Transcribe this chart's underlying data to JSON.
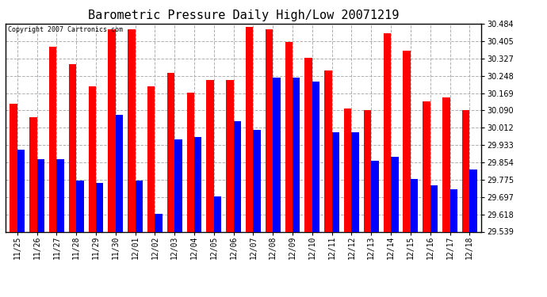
{
  "title": "Barometric Pressure Daily High/Low 20071219",
  "copyright": "Copyright 2007 Cartronics.com",
  "categories": [
    "11/25",
    "11/26",
    "11/27",
    "11/28",
    "11/29",
    "11/30",
    "12/01",
    "12/02",
    "12/03",
    "12/04",
    "12/05",
    "12/06",
    "12/07",
    "12/08",
    "12/09",
    "12/10",
    "12/11",
    "12/12",
    "12/13",
    "12/14",
    "12/15",
    "12/16",
    "12/17",
    "12/18"
  ],
  "highs": [
    30.12,
    30.06,
    30.38,
    30.3,
    30.2,
    30.46,
    30.46,
    30.2,
    30.26,
    30.17,
    30.23,
    30.23,
    30.47,
    30.46,
    30.4,
    30.33,
    30.27,
    30.1,
    30.09,
    30.44,
    30.36,
    30.13,
    30.15,
    30.09
  ],
  "lows": [
    29.91,
    29.87,
    29.87,
    29.77,
    29.76,
    30.07,
    29.77,
    29.62,
    29.96,
    29.97,
    29.7,
    30.04,
    30.0,
    30.24,
    30.24,
    30.22,
    29.99,
    29.99,
    29.86,
    29.88,
    29.78,
    29.75,
    29.73,
    29.82
  ],
  "high_color": "#ff0000",
  "low_color": "#0000ff",
  "bg_color": "#ffffff",
  "grid_color": "#b0b0b0",
  "ylim_min": 29.539,
  "ylim_max": 30.484,
  "yticks": [
    29.539,
    29.618,
    29.697,
    29.775,
    29.854,
    29.933,
    30.012,
    30.09,
    30.169,
    30.248,
    30.327,
    30.405,
    30.484
  ],
  "title_fontsize": 11,
  "tick_fontsize": 7,
  "bar_width": 0.38
}
